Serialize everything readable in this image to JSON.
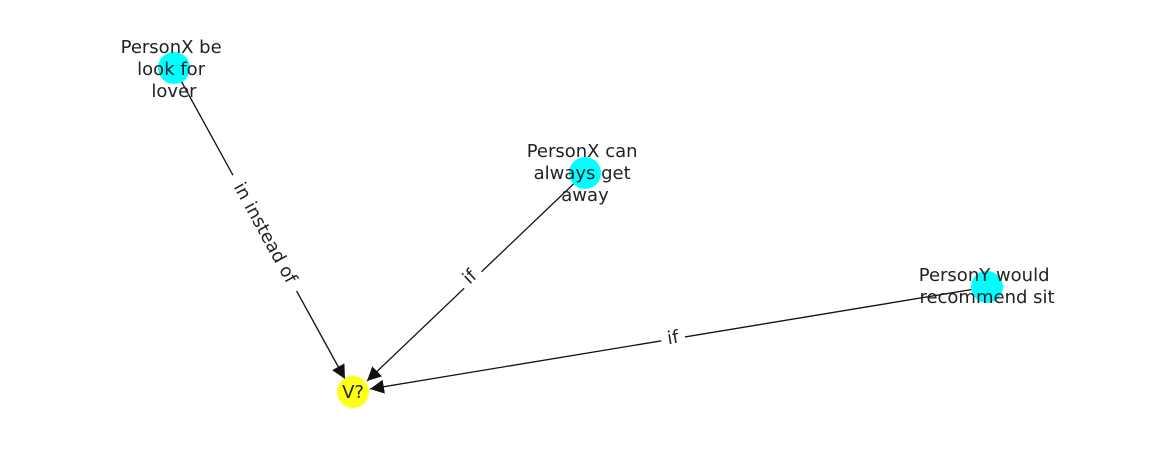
{
  "colors": {
    "source_node": "#00ffff",
    "target_node": "#ffff1a",
    "edge": "#111111",
    "text": "#222222"
  },
  "nodes": [
    {
      "id": "n1",
      "lines": [
        "PersonX be",
        "look for",
        "lover"
      ],
      "role": "source"
    },
    {
      "id": "n2",
      "lines": [
        "PersonX can",
        "always get",
        "away"
      ],
      "role": "source"
    },
    {
      "id": "n3",
      "lines": [
        "PersonY would",
        "recommend sit"
      ],
      "role": "source"
    },
    {
      "id": "n4",
      "lines": [
        "V?"
      ],
      "role": "target"
    }
  ],
  "edges": [
    {
      "from": "n1",
      "to": "n4",
      "label": "in instead of"
    },
    {
      "from": "n2",
      "to": "n4",
      "label": "if"
    },
    {
      "from": "n3",
      "to": "n4",
      "label": "if"
    }
  ]
}
